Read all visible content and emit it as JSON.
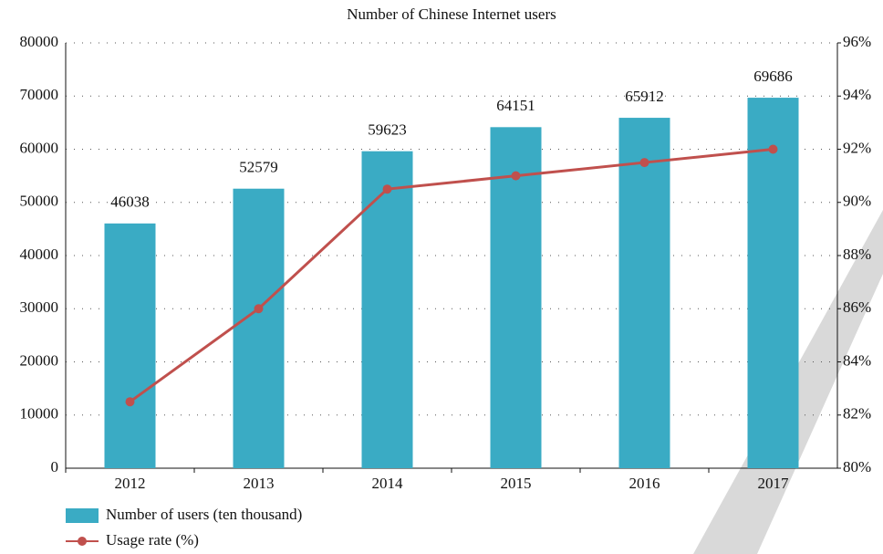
{
  "chart_data": {
    "type": "bar_line",
    "title": "Number of Chinese Internet users",
    "categories": [
      "2012",
      "2013",
      "2014",
      "2015",
      "2016",
      "2017"
    ],
    "series": [
      {
        "name": "Number of users (ten thousand)",
        "color": "#3aabc4",
        "type": "bar",
        "values": [
          46038,
          52579,
          59623,
          64151,
          65912,
          69686
        ]
      },
      {
        "name": "Usage rate (%)",
        "color": "#c0504d",
        "type": "line",
        "axis": "y2",
        "values": [
          82.5,
          86.0,
          90.5,
          91.0,
          91.5,
          92.0
        ]
      }
    ],
    "ylim": [
      0,
      80000
    ],
    "yticks": [
      0,
      10000,
      20000,
      30000,
      40000,
      50000,
      60000,
      70000,
      80000
    ],
    "y2lim": [
      80,
      96
    ],
    "y2ticks": [
      {
        "value": 80,
        "label": "80%"
      },
      {
        "value": 82,
        "label": "82%"
      },
      {
        "value": 84,
        "label": "84%"
      },
      {
        "value": 86,
        "label": "86%"
      },
      {
        "value": 88,
        "label": "88%"
      },
      {
        "value": 90,
        "label": "90%"
      },
      {
        "value": 92,
        "label": "92%"
      },
      {
        "value": 94,
        "label": "94%"
      },
      {
        "value": 96,
        "label": "96%"
      }
    ],
    "grid": true
  }
}
